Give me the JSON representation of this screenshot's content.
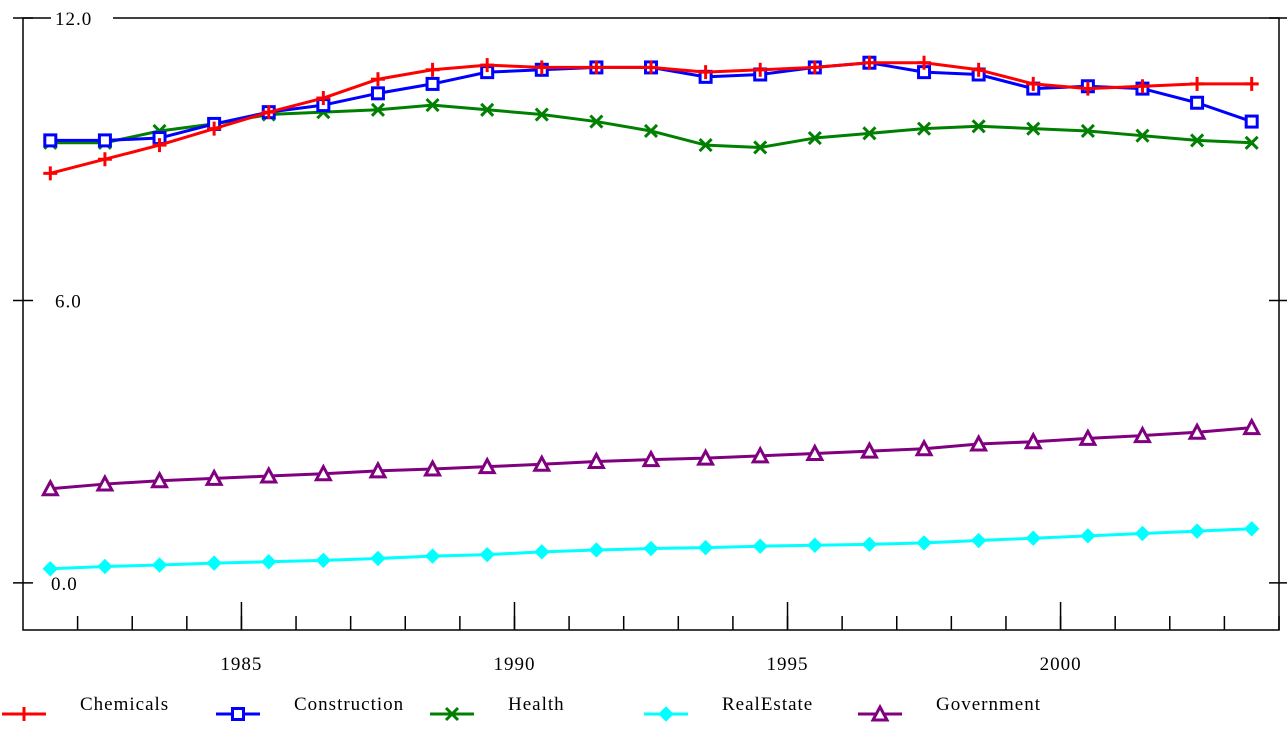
{
  "chart_data": {
    "type": "line",
    "title": "",
    "xlabel": "",
    "ylabel": "",
    "x": [
      1981,
      1982,
      1983,
      1984,
      1985,
      1986,
      1987,
      1988,
      1989,
      1990,
      1991,
      1992,
      1993,
      1994,
      1995,
      1996,
      1997,
      1998,
      1999,
      2000,
      2001,
      2002,
      2003
    ],
    "xlim": [
      1980.5,
      2003.5
    ],
    "ylim": [
      -1.0,
      12.0
    ],
    "x_ticks": [
      "1985",
      "1990",
      "1995",
      "2000"
    ],
    "y_ticks": [
      "12.0",
      "6.0",
      "0.0"
    ],
    "grid": false,
    "legend_position": "bottom",
    "series": [
      {
        "name": "Chemicals",
        "color": "#ff0000",
        "marker": "plus",
        "values": [
          8.7,
          9.0,
          9.3,
          9.65,
          10.0,
          10.3,
          10.7,
          10.9,
          11.0,
          10.95,
          10.95,
          10.95,
          10.85,
          10.9,
          10.95,
          11.05,
          11.05,
          10.9,
          10.6,
          10.5,
          10.55,
          10.6,
          10.6
        ]
      },
      {
        "name": "Construction",
        "color": "#0000ff",
        "marker": "square",
        "values": [
          9.4,
          9.4,
          9.45,
          9.75,
          10.0,
          10.15,
          10.4,
          10.6,
          10.85,
          10.9,
          10.95,
          10.95,
          10.75,
          10.8,
          10.95,
          11.05,
          10.85,
          10.8,
          10.5,
          10.55,
          10.5,
          10.2,
          9.8
        ]
      },
      {
        "name": "Health",
        "color": "#008000",
        "marker": "x",
        "values": [
          9.35,
          9.35,
          9.6,
          9.75,
          9.95,
          10.0,
          10.05,
          10.15,
          10.05,
          9.95,
          9.8,
          9.6,
          9.3,
          9.25,
          9.45,
          9.55,
          9.65,
          9.7,
          9.65,
          9.6,
          9.5,
          9.4,
          9.35
        ]
      },
      {
        "name": "RealEstate",
        "color": "#00ffff",
        "marker": "diamond",
        "values": [
          0.3,
          0.35,
          0.38,
          0.42,
          0.45,
          0.48,
          0.52,
          0.57,
          0.6,
          0.66,
          0.7,
          0.73,
          0.75,
          0.78,
          0.8,
          0.82,
          0.85,
          0.9,
          0.95,
          1.0,
          1.05,
          1.1,
          1.15
        ]
      },
      {
        "name": "Government",
        "color": "#800080",
        "marker": "triangle",
        "values": [
          2.0,
          2.1,
          2.17,
          2.22,
          2.27,
          2.32,
          2.38,
          2.42,
          2.47,
          2.52,
          2.58,
          2.62,
          2.65,
          2.7,
          2.75,
          2.8,
          2.85,
          2.95,
          3.0,
          3.07,
          3.13,
          3.2,
          3.3
        ]
      }
    ]
  }
}
